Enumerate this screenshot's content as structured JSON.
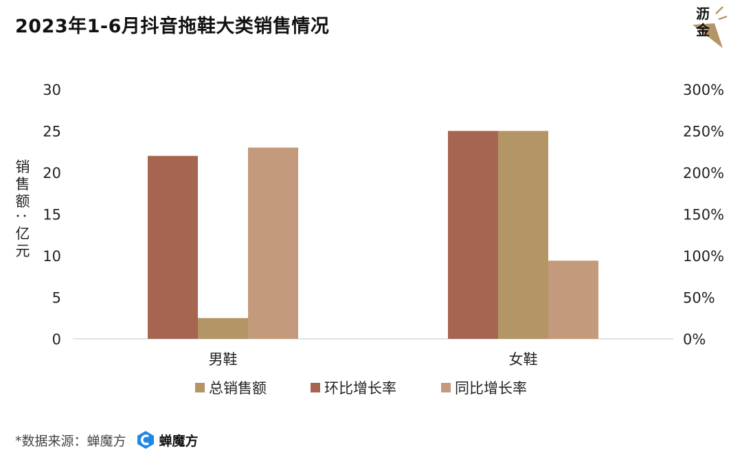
{
  "title": "2023年1-6月抖音拖鞋大类销售情况",
  "logo": {
    "text": "沥金",
    "accent": "#b39566"
  },
  "source": {
    "label": "*数据来源：蝉魔方",
    "brand": "蝉魔方",
    "brand_color": "#1e88e5"
  },
  "chart_data": {
    "type": "bar",
    "categories": [
      "男鞋",
      "女鞋"
    ],
    "series": [
      {
        "name": "环比增长率",
        "axis": "right",
        "color": "#a56550",
        "values": [
          220,
          250
        ]
      },
      {
        "name": "总销售额",
        "axis": "left",
        "color": "#b39566",
        "values": [
          2.5,
          25
        ]
      },
      {
        "name": "同比增长率",
        "axis": "right",
        "color": "#c39a7c",
        "values": [
          230,
          94
        ]
      }
    ],
    "legend_order": [
      "总销售额",
      "环比增长率",
      "同比增长率"
    ],
    "ylabel": "销售额：亿元",
    "ylim": [
      0,
      30
    ],
    "yticks": [
      "0",
      "5",
      "10",
      "15",
      "20",
      "25",
      "30"
    ],
    "y2lim": [
      0,
      300
    ],
    "y2ticks": [
      "0%",
      "50%",
      "100%",
      "150%",
      "200%",
      "250%",
      "300%"
    ],
    "grid": false,
    "legend_position": "bottom"
  }
}
